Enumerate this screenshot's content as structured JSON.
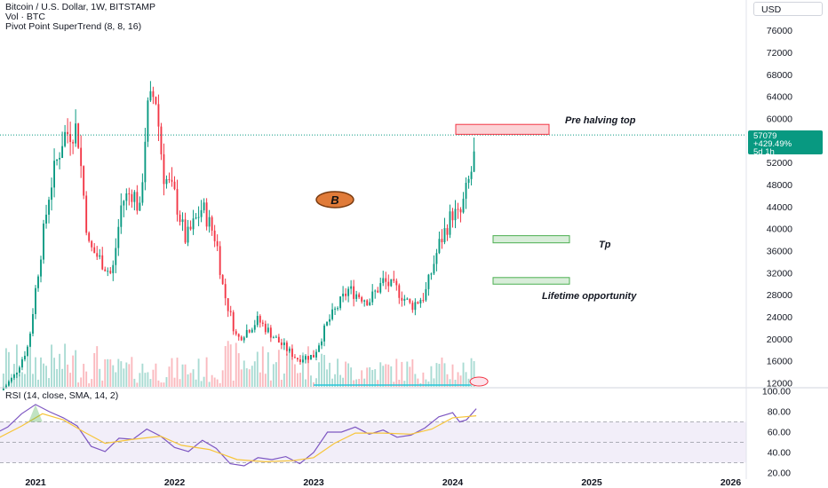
{
  "header": {
    "symbol_line": "Bitcoin / U.S. Dollar, 1W, BITSTAMP",
    "volume_line": "Vol · BTC",
    "indicator_line": "Pivot Point SuperTrend (8, 8, 16)",
    "rsi_line": "RSI (14, close, SMA, 14, 2)",
    "currency": "USD"
  },
  "price_tag": {
    "last": "57079",
    "change": "+429.49%",
    "countdown": "5d 1h"
  },
  "annotations": {
    "pre_halving": "Pre halving top",
    "tp": "Tp",
    "lifetime": "Lifetime opportunity",
    "logo_letter": "B"
  },
  "colors": {
    "up": "#089981",
    "down": "#f23645",
    "rsi": "#7e57c2",
    "rsi_ma": "#f7c53a",
    "supertrend": "#26c6da"
  },
  "chart_data": [
    {
      "type": "candlestick",
      "title": "Bitcoin / U.S. Dollar, 1W, BITSTAMP",
      "x_tick_labels": [
        "2021",
        "2022",
        "2023",
        "2024",
        "2025",
        "2026"
      ],
      "y_tick_labels": [
        12000,
        16000,
        20000,
        24000,
        28000,
        32000,
        36000,
        40000,
        44000,
        48000,
        52000,
        56000,
        60000,
        64000,
        68000,
        72000,
        76000
      ],
      "ylim": [
        11000,
        78000
      ],
      "price_series": [
        {
          "x": 2020.75,
          "y": 10500
        },
        {
          "x": 2020.85,
          "y": 13500
        },
        {
          "x": 2020.95,
          "y": 19000
        },
        {
          "x": 2021.0,
          "y": 29000
        },
        {
          "x": 2021.1,
          "y": 47000
        },
        {
          "x": 2021.2,
          "y": 57000
        },
        {
          "x": 2021.3,
          "y": 58500
        },
        {
          "x": 2021.38,
          "y": 37000
        },
        {
          "x": 2021.48,
          "y": 34000
        },
        {
          "x": 2021.55,
          "y": 31500
        },
        {
          "x": 2021.62,
          "y": 45000
        },
        {
          "x": 2021.7,
          "y": 47000
        },
        {
          "x": 2021.75,
          "y": 43000
        },
        {
          "x": 2021.8,
          "y": 61000
        },
        {
          "x": 2021.86,
          "y": 65000
        },
        {
          "x": 2021.92,
          "y": 50000
        },
        {
          "x": 2022.0,
          "y": 46000
        },
        {
          "x": 2022.08,
          "y": 38000
        },
        {
          "x": 2022.2,
          "y": 44000
        },
        {
          "x": 2022.3,
          "y": 38000
        },
        {
          "x": 2022.35,
          "y": 29000
        },
        {
          "x": 2022.45,
          "y": 20000
        },
        {
          "x": 2022.6,
          "y": 23500
        },
        {
          "x": 2022.75,
          "y": 19500
        },
        {
          "x": 2022.88,
          "y": 16500
        },
        {
          "x": 2023.0,
          "y": 17000
        },
        {
          "x": 2023.1,
          "y": 23000
        },
        {
          "x": 2023.25,
          "y": 29000
        },
        {
          "x": 2023.4,
          "y": 27000
        },
        {
          "x": 2023.5,
          "y": 30500
        },
        {
          "x": 2023.6,
          "y": 29000
        },
        {
          "x": 2023.7,
          "y": 26000
        },
        {
          "x": 2023.8,
          "y": 28000
        },
        {
          "x": 2023.9,
          "y": 37000
        },
        {
          "x": 2024.0,
          "y": 43000
        },
        {
          "x": 2024.05,
          "y": 42000
        },
        {
          "x": 2024.1,
          "y": 47000
        },
        {
          "x": 2024.15,
          "y": 52000
        },
        {
          "x": 2024.17,
          "y": 57079
        }
      ],
      "zones": [
        {
          "label": "Pre halving top",
          "kind": "resistance",
          "y_low": 57200,
          "y_high": 59000
        },
        {
          "label": "Tp",
          "kind": "target",
          "y_low": 37500,
          "y_high": 38800
        },
        {
          "label": "Lifetime opportunity",
          "kind": "support",
          "y_low": 30000,
          "y_high": 31200
        }
      ],
      "last_price": 57079,
      "last_change": "+429.49%"
    },
    {
      "type": "line",
      "title": "RSI (14, close, SMA, 14, 2)",
      "y_tick_labels": [
        "100.00",
        "80.00",
        "60.00",
        "40.00",
        "20.00"
      ],
      "ylim": [
        20,
        100
      ],
      "bands": [
        30,
        50,
        70
      ],
      "series": [
        {
          "color": "#7e57c2",
          "points": [
            {
              "x": 2020.7,
              "y": 58
            },
            {
              "x": 2020.8,
              "y": 65
            },
            {
              "x": 2020.9,
              "y": 78
            },
            {
              "x": 2021.0,
              "y": 87
            },
            {
              "x": 2021.1,
              "y": 80
            },
            {
              "x": 2021.2,
              "y": 74
            },
            {
              "x": 2021.3,
              "y": 66
            },
            {
              "x": 2021.4,
              "y": 46
            },
            {
              "x": 2021.5,
              "y": 41
            },
            {
              "x": 2021.6,
              "y": 54
            },
            {
              "x": 2021.7,
              "y": 53
            },
            {
              "x": 2021.8,
              "y": 63
            },
            {
              "x": 2021.9,
              "y": 56
            },
            {
              "x": 2022.0,
              "y": 45
            },
            {
              "x": 2022.1,
              "y": 41
            },
            {
              "x": 2022.2,
              "y": 52
            },
            {
              "x": 2022.3,
              "y": 44
            },
            {
              "x": 2022.4,
              "y": 29
            },
            {
              "x": 2022.5,
              "y": 27
            },
            {
              "x": 2022.6,
              "y": 35
            },
            {
              "x": 2022.7,
              "y": 33
            },
            {
              "x": 2022.8,
              "y": 36
            },
            {
              "x": 2022.9,
              "y": 29
            },
            {
              "x": 2023.0,
              "y": 40
            },
            {
              "x": 2023.1,
              "y": 60
            },
            {
              "x": 2023.2,
              "y": 60
            },
            {
              "x": 2023.3,
              "y": 65
            },
            {
              "x": 2023.4,
              "y": 58
            },
            {
              "x": 2023.5,
              "y": 62
            },
            {
              "x": 2023.6,
              "y": 55
            },
            {
              "x": 2023.7,
              "y": 57
            },
            {
              "x": 2023.8,
              "y": 64
            },
            {
              "x": 2023.9,
              "y": 75
            },
            {
              "x": 2024.0,
              "y": 79
            },
            {
              "x": 2024.05,
              "y": 70
            },
            {
              "x": 2024.1,
              "y": 72
            },
            {
              "x": 2024.17,
              "y": 83
            }
          ]
        },
        {
          "color": "#f7c53a",
          "points": [
            {
              "x": 2020.7,
              "y": 52
            },
            {
              "x": 2020.9,
              "y": 66
            },
            {
              "x": 2021.05,
              "y": 78
            },
            {
              "x": 2021.2,
              "y": 72
            },
            {
              "x": 2021.35,
              "y": 60
            },
            {
              "x": 2021.5,
              "y": 49
            },
            {
              "x": 2021.7,
              "y": 53
            },
            {
              "x": 2021.9,
              "y": 56
            },
            {
              "x": 2022.05,
              "y": 47
            },
            {
              "x": 2022.25,
              "y": 43
            },
            {
              "x": 2022.45,
              "y": 33
            },
            {
              "x": 2022.65,
              "y": 31
            },
            {
              "x": 2022.85,
              "y": 32
            },
            {
              "x": 2023.0,
              "y": 35
            },
            {
              "x": 2023.15,
              "y": 49
            },
            {
              "x": 2023.3,
              "y": 59
            },
            {
              "x": 2023.5,
              "y": 59
            },
            {
              "x": 2023.7,
              "y": 58
            },
            {
              "x": 2023.85,
              "y": 63
            },
            {
              "x": 2024.0,
              "y": 74
            },
            {
              "x": 2024.17,
              "y": 76
            }
          ]
        }
      ]
    }
  ]
}
